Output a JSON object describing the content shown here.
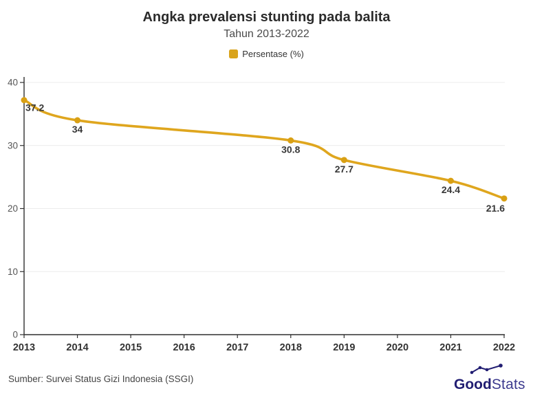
{
  "header": {
    "title": "Angka prevalensi stunting pada balita",
    "subtitle": "Tahun 2013-2022"
  },
  "legend": {
    "label": "Persentase (%)",
    "swatch_color": "#D9A41C"
  },
  "chart_data": {
    "type": "line",
    "title": "Angka prevalensi stunting pada balita",
    "subtitle": "Tahun 2013-2022",
    "categories": [
      "2013",
      "2014",
      "2015",
      "2016",
      "2017",
      "2018",
      "2019",
      "2020",
      "2021",
      "2022"
    ],
    "series": [
      {
        "name": "Persentase (%)",
        "values": [
          37.2,
          34,
          null,
          null,
          null,
          30.8,
          27.7,
          null,
          24.4,
          21.6
        ],
        "color": "#DFA61E"
      }
    ],
    "xlabel": "",
    "ylabel": "",
    "ylim": [
      0,
      40
    ],
    "y_ticks": [
      0,
      10,
      20,
      30,
      40
    ],
    "grid": true,
    "smooth": true,
    "legend_position": "top"
  },
  "footer": {
    "source": "Sumber: Survei Status Gizi Indonesia (SSGI)",
    "logo": {
      "bold": "Good",
      "light": "Stats"
    }
  },
  "colors": {
    "line": "#DFA61E",
    "marker": "#D9A014",
    "label": "#383838",
    "axis": "#2e2e2e",
    "grid": "#ececec",
    "y_tick_text": "#555555",
    "x_tick_text": "#333333",
    "logo_navy": "#211d72"
  }
}
